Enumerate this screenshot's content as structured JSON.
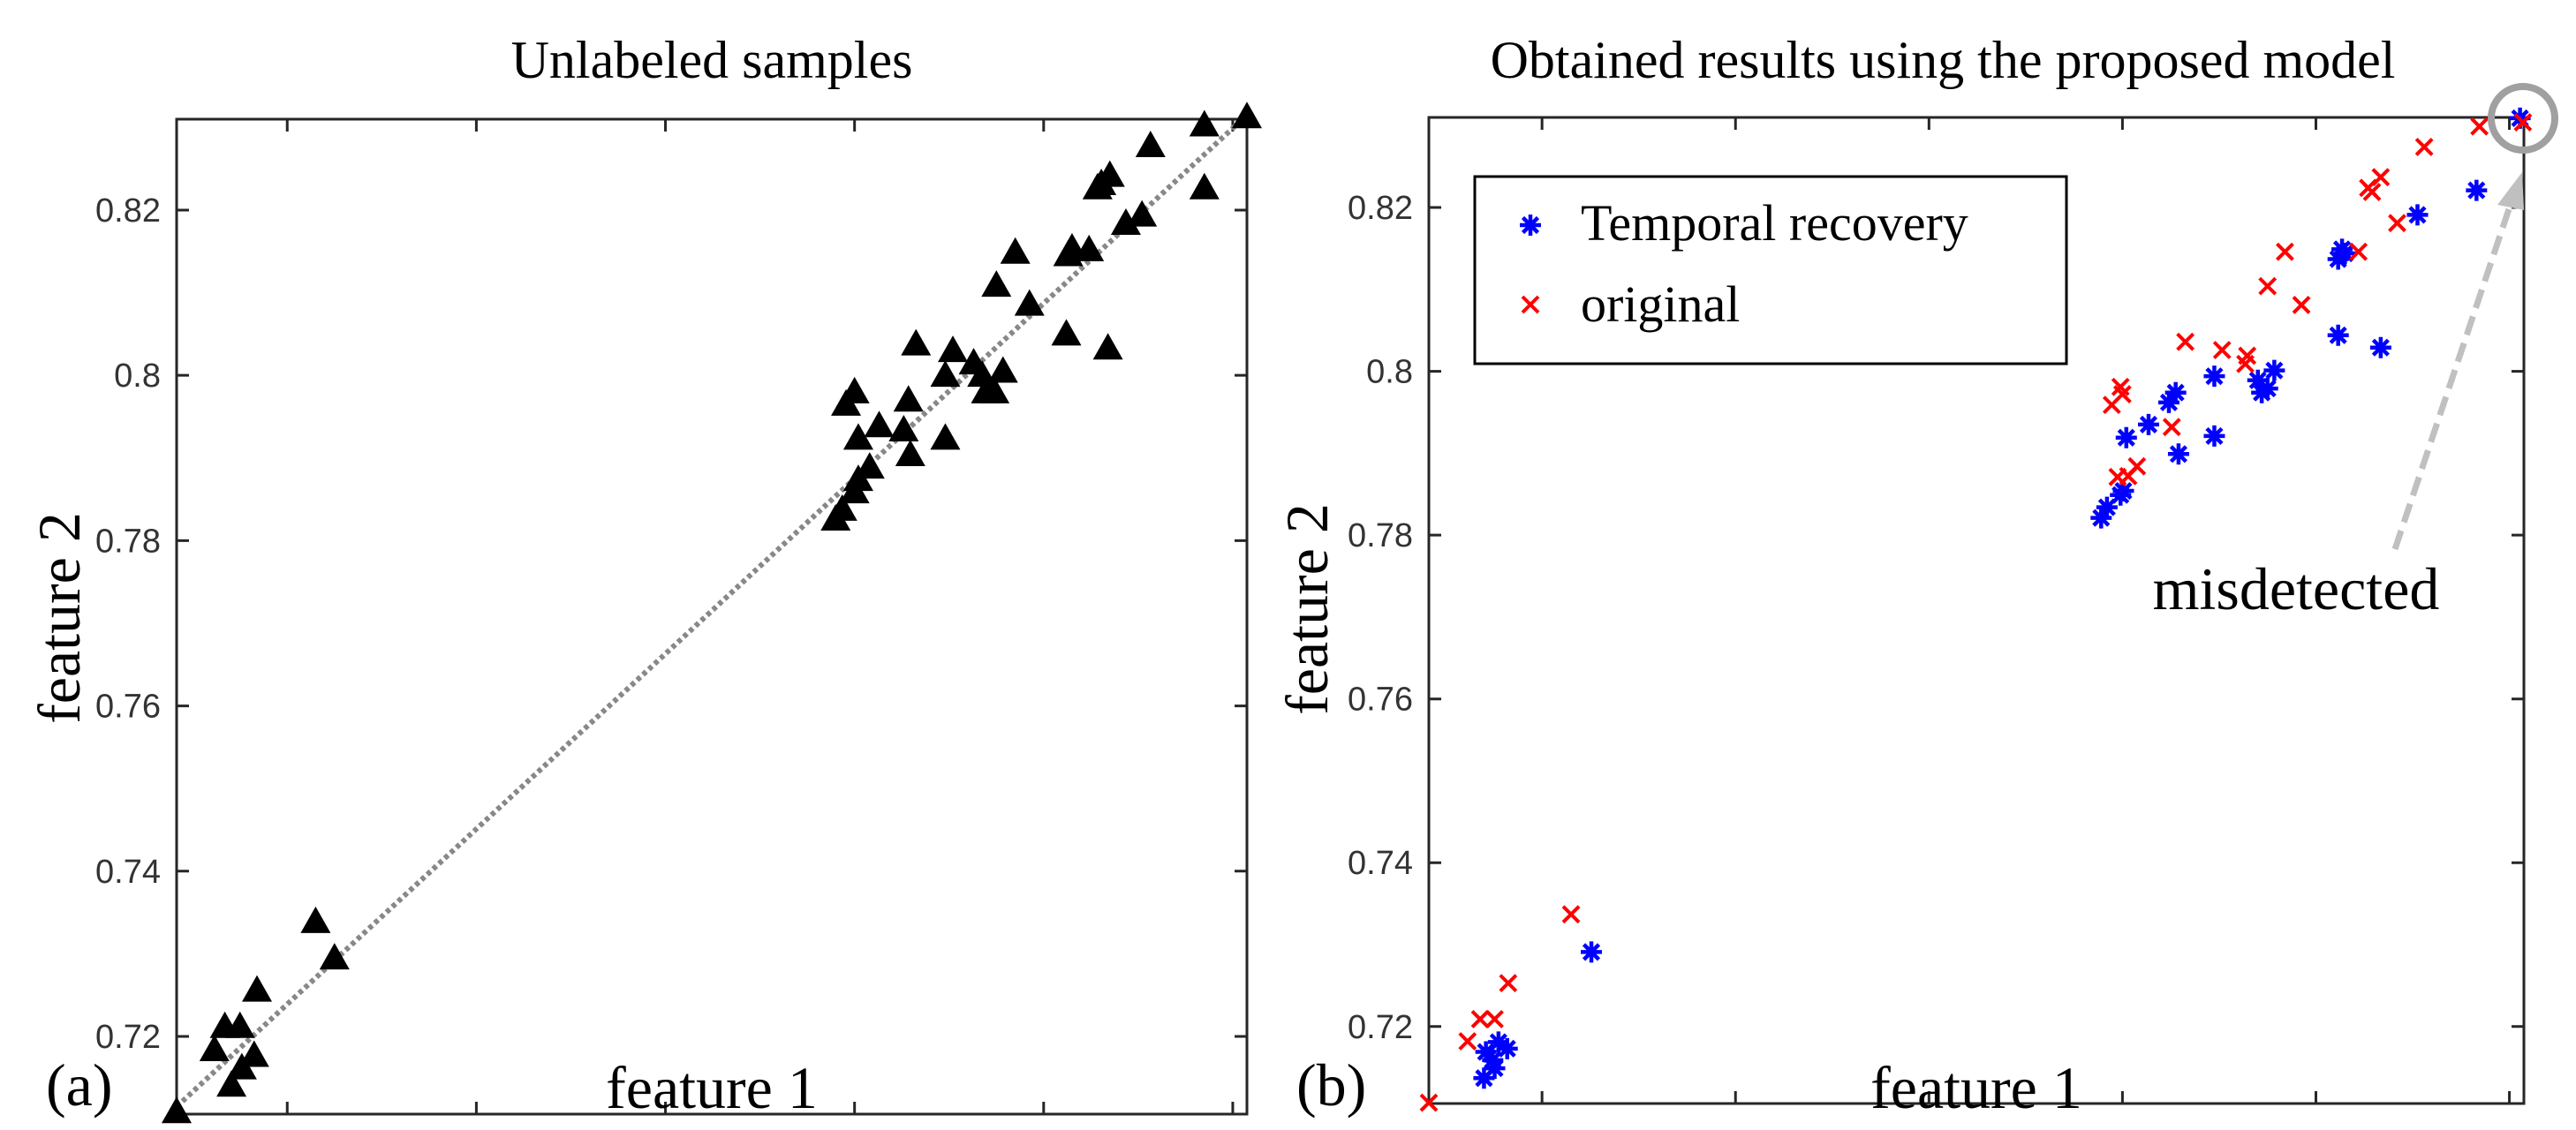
{
  "panels": {
    "a": {
      "label": "(a)"
    },
    "b": {
      "label": "(b)",
      "annotation": "misdetected"
    }
  },
  "chart_data": [
    {
      "type": "scatter",
      "title": "Unlabeled samples",
      "xlabel": "feature 1",
      "ylabel": "feature 2",
      "xlim": [
        0.7483,
        0.8615
      ],
      "ylim": [
        0.7106,
        0.831
      ],
      "xticks": [
        "0.76",
        "0.78",
        "0.8",
        "0.82",
        "0.84",
        "0.86"
      ],
      "yticks": [
        "0.72",
        "0.74",
        "0.76",
        "0.78",
        "0.8",
        "0.82"
      ],
      "grid": false,
      "trendline": {
        "style": "dotted",
        "color": "#888888",
        "from": [
          0.7483,
          0.7115
        ],
        "to": [
          0.8615,
          0.8315
        ]
      },
      "series": [
        {
          "name": "samples",
          "marker": "triangle",
          "color": "#000000",
          "points": [
            [
              0.7483,
              0.7109
            ],
            [
              0.7523,
              0.7184
            ],
            [
              0.7534,
              0.7212
            ],
            [
              0.755,
              0.7212
            ],
            [
              0.7541,
              0.7141
            ],
            [
              0.7552,
              0.7162
            ],
            [
              0.7565,
              0.7177
            ],
            [
              0.7568,
              0.7256
            ],
            [
              0.763,
              0.7339
            ],
            [
              0.765,
              0.7295
            ],
            [
              0.818,
              0.7826
            ],
            [
              0.8187,
              0.7838
            ],
            [
              0.82,
              0.7859
            ],
            [
              0.8204,
              0.7874
            ],
            [
              0.8191,
              0.7965
            ],
            [
              0.82,
              0.798
            ],
            [
              0.8204,
              0.7924
            ],
            [
              0.8216,
              0.7889
            ],
            [
              0.8226,
              0.7939
            ],
            [
              0.8252,
              0.7934
            ],
            [
              0.8257,
              0.797
            ],
            [
              0.8259,
              0.7904
            ],
            [
              0.8265,
              0.8038
            ],
            [
              0.8296,
              0.7924
            ],
            [
              0.8296,
              0.8
            ],
            [
              0.8304,
              0.803
            ],
            [
              0.8326,
              0.8015
            ],
            [
              0.8335,
              0.8
            ],
            [
              0.8339,
              0.798
            ],
            [
              0.8348,
              0.798
            ],
            [
              0.8357,
              0.8005
            ],
            [
              0.835,
              0.8109
            ],
            [
              0.837,
              0.8149
            ],
            [
              0.8385,
              0.8086
            ],
            [
              0.8424,
              0.805
            ],
            [
              0.8426,
              0.8146
            ],
            [
              0.843,
              0.8154
            ],
            [
              0.8448,
              0.8152
            ],
            [
              0.8457,
              0.8227
            ],
            [
              0.8461,
              0.8232
            ],
            [
              0.847,
              0.8242
            ],
            [
              0.8468,
              0.8033
            ],
            [
              0.8487,
              0.8184
            ],
            [
              0.8504,
              0.8194
            ],
            [
              0.8513,
              0.8278
            ],
            [
              0.857,
              0.8303
            ],
            [
              0.857,
              0.8227
            ],
            [
              0.8615,
              0.8313
            ]
          ]
        }
      ]
    },
    {
      "type": "scatter",
      "title": "Obtained results using the proposed model",
      "xlabel": "feature 1",
      "ylabel": "feature 2",
      "xlim": [
        0.7483,
        0.8615
      ],
      "ylim": [
        0.7106,
        0.831
      ],
      "xticks": [
        "0.76",
        "0.78",
        "0.8",
        "0.82",
        "0.84",
        "0.86"
      ],
      "yticks": [
        "0.72",
        "0.74",
        "0.76",
        "0.78",
        "0.8",
        "0.82"
      ],
      "grid": false,
      "legend": {
        "placement": "top-left",
        "entries": [
          "Temporal recovery",
          "original"
        ]
      },
      "annotation": {
        "text": "misdetected",
        "target": [
          0.8615,
          0.831
        ]
      },
      "series": [
        {
          "name": "Temporal recovery",
          "marker": "asterisk",
          "color": "#0000ff",
          "points": [
            [
              0.754,
              0.7137
            ],
            [
              0.7542,
              0.7169
            ],
            [
              0.7549,
              0.7159
            ],
            [
              0.7555,
              0.7181
            ],
            [
              0.7564,
              0.7173
            ],
            [
              0.7551,
              0.7149
            ],
            [
              0.7651,
              0.7291
            ],
            [
              0.8178,
              0.7821
            ],
            [
              0.8184,
              0.7834
            ],
            [
              0.8198,
              0.7849
            ],
            [
              0.8201,
              0.7854
            ],
            [
              0.8204,
              0.7919
            ],
            [
              0.8227,
              0.7935
            ],
            [
              0.8248,
              0.7962
            ],
            [
              0.8255,
              0.7974
            ],
            [
              0.8258,
              0.7899
            ],
            [
              0.8295,
              0.7994
            ],
            [
              0.8295,
              0.7921
            ],
            [
              0.834,
              0.7989
            ],
            [
              0.8344,
              0.7974
            ],
            [
              0.835,
              0.7979
            ],
            [
              0.8357,
              0.8001
            ],
            [
              0.8423,
              0.8137
            ],
            [
              0.8427,
              0.8149
            ],
            [
              0.843,
              0.8144
            ],
            [
              0.8423,
              0.8044
            ],
            [
              0.8467,
              0.8029
            ],
            [
              0.8505,
              0.8191
            ],
            [
              0.8566,
              0.8221
            ],
            [
              0.8611,
              0.8309
            ]
          ]
        },
        {
          "name": "original",
          "marker": "x",
          "color": "#ff0000",
          "points": [
            [
              0.7483,
              0.7107
            ],
            [
              0.7523,
              0.7182
            ],
            [
              0.7536,
              0.7209
            ],
            [
              0.7551,
              0.7209
            ],
            [
              0.7565,
              0.7253
            ],
            [
              0.763,
              0.7337
            ],
            [
              0.8189,
              0.7959
            ],
            [
              0.8198,
              0.7981
            ],
            [
              0.82,
              0.7972
            ],
            [
              0.8195,
              0.7871
            ],
            [
              0.8206,
              0.7872
            ],
            [
              0.8215,
              0.7884
            ],
            [
              0.8251,
              0.7932
            ],
            [
              0.8265,
              0.8036
            ],
            [
              0.8303,
              0.8026
            ],
            [
              0.8327,
              0.8009
            ],
            [
              0.8329,
              0.8019
            ],
            [
              0.835,
              0.8104
            ],
            [
              0.8368,
              0.8146
            ],
            [
              0.8385,
              0.8081
            ],
            [
              0.8444,
              0.8146
            ],
            [
              0.8454,
              0.8224
            ],
            [
              0.8458,
              0.8219
            ],
            [
              0.8467,
              0.8237
            ],
            [
              0.8484,
              0.8181
            ],
            [
              0.8512,
              0.8274
            ],
            [
              0.8569,
              0.8299
            ],
            [
              0.8614,
              0.8304
            ]
          ]
        }
      ]
    }
  ]
}
